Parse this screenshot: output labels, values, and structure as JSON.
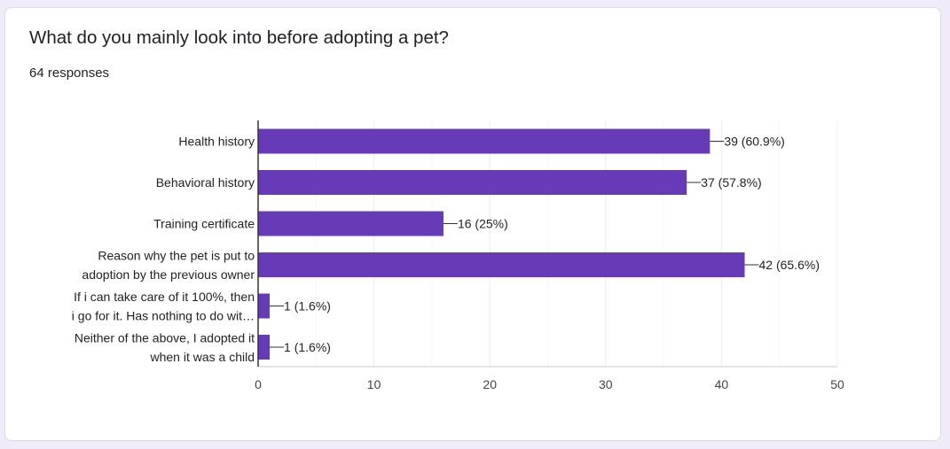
{
  "question": {
    "title": "What do you mainly look into before adopting a pet?",
    "responses": "64 responses"
  },
  "colors": {
    "bar": "#673ab7",
    "axis": "#333333",
    "grid": "#ececec",
    "text": "#222222",
    "tick": "#444444"
  },
  "chart_data": {
    "type": "bar",
    "orientation": "horizontal",
    "categories": [
      [
        "Health history"
      ],
      [
        "Behavioral history"
      ],
      [
        "Training certificate"
      ],
      [
        "Reason why the pet is put to",
        "adoption by the previous owner"
      ],
      [
        "If i can take care of it 100%, then",
        "i go for it. Has nothing to do wit…"
      ],
      [
        "Neither of the above, I adopted it",
        "when it was a child"
      ]
    ],
    "values": [
      39,
      37,
      16,
      42,
      1,
      1
    ],
    "data_labels": [
      "39 (60.9%)",
      "37 (57.8%)",
      "16 (25%)",
      "42 (65.6%)",
      "1 (1.6%)",
      "1 (1.6%)"
    ],
    "xlim": [
      0,
      50
    ],
    "xticks": [
      0,
      10,
      20,
      30,
      40,
      50
    ],
    "grid": true
  }
}
